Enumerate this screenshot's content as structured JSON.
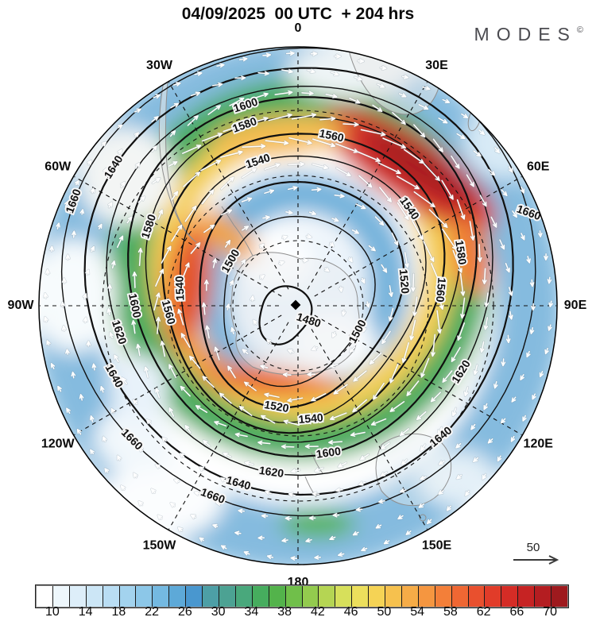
{
  "title": "04/09/2025  00 UTC  + 204 hrs",
  "logo": {
    "text": "MODES",
    "mark": "©"
  },
  "chart_data": {
    "type": "heatmap",
    "projection": "south-polar-stereographic",
    "title": "04/09/2025 00 UTC + 204 hrs",
    "longitude_labels": [
      "0",
      "30E",
      "60E",
      "90E",
      "120E",
      "150E",
      "180",
      "150W",
      "120W",
      "90W",
      "60W",
      "30W"
    ],
    "contour_levels": [
      1480,
      1500,
      1520,
      1540,
      1560,
      1580,
      1600,
      1620,
      1640,
      1660
    ],
    "pole_min_contour": 1480,
    "colorbar": {
      "min": 8,
      "max": 72,
      "step": 2,
      "tick_labels": [
        10,
        14,
        18,
        22,
        26,
        30,
        34,
        38,
        42,
        46,
        50,
        54,
        58,
        62,
        66,
        70
      ],
      "colors": [
        "#ffffff",
        "#eef7fc",
        "#ddeef9",
        "#cce6f6",
        "#b9ddf3",
        "#a3d3ee",
        "#8cc7e8",
        "#74b9e1",
        "#5da9d8",
        "#4997cf",
        "#4d9fa6",
        "#4ca293",
        "#49a87c",
        "#46ad5e",
        "#53b34b",
        "#70bf4a",
        "#93cb4e",
        "#b5d553",
        "#d7e05b",
        "#ecdf5c",
        "#f5d355",
        "#f6c14e",
        "#f6ac47",
        "#f59640",
        "#f37f39",
        "#ef6733",
        "#e9502e",
        "#e13c29",
        "#d52c26",
        "#c62323",
        "#b41d21",
        "#9e1a1e"
      ]
    },
    "reference_arrow": {
      "label": "50"
    },
    "flow_direction": "clockwise"
  }
}
